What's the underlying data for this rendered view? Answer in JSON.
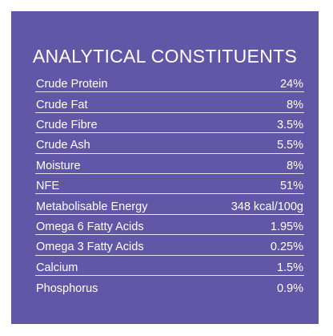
{
  "title": "ANALYTICAL CONSTITUENTS",
  "rows": [
    {
      "label": "Crude Protein",
      "value": "24%"
    },
    {
      "label": "Crude Fat",
      "value": "8%"
    },
    {
      "label": "Crude Fibre",
      "value": "3.5%"
    },
    {
      "label": "Crude Ash",
      "value": "5.5%"
    },
    {
      "label": "Moisture",
      "value": "8%"
    },
    {
      "label": "NFE",
      "value": "51%"
    },
    {
      "label": "Metabolisable Energy",
      "value": "348 kcal/100g"
    },
    {
      "label": "Omega 6 Fatty Acids",
      "value": "1.95%"
    },
    {
      "label": "Omega 3 Fatty Acids",
      "value": "0.25%"
    },
    {
      "label": "Calcium",
      "value": "1.5%"
    },
    {
      "label": "Phosphorus",
      "value": "0.9%"
    }
  ],
  "colors": {
    "panel_background": "#6257a6",
    "text": "#ffffff"
  }
}
